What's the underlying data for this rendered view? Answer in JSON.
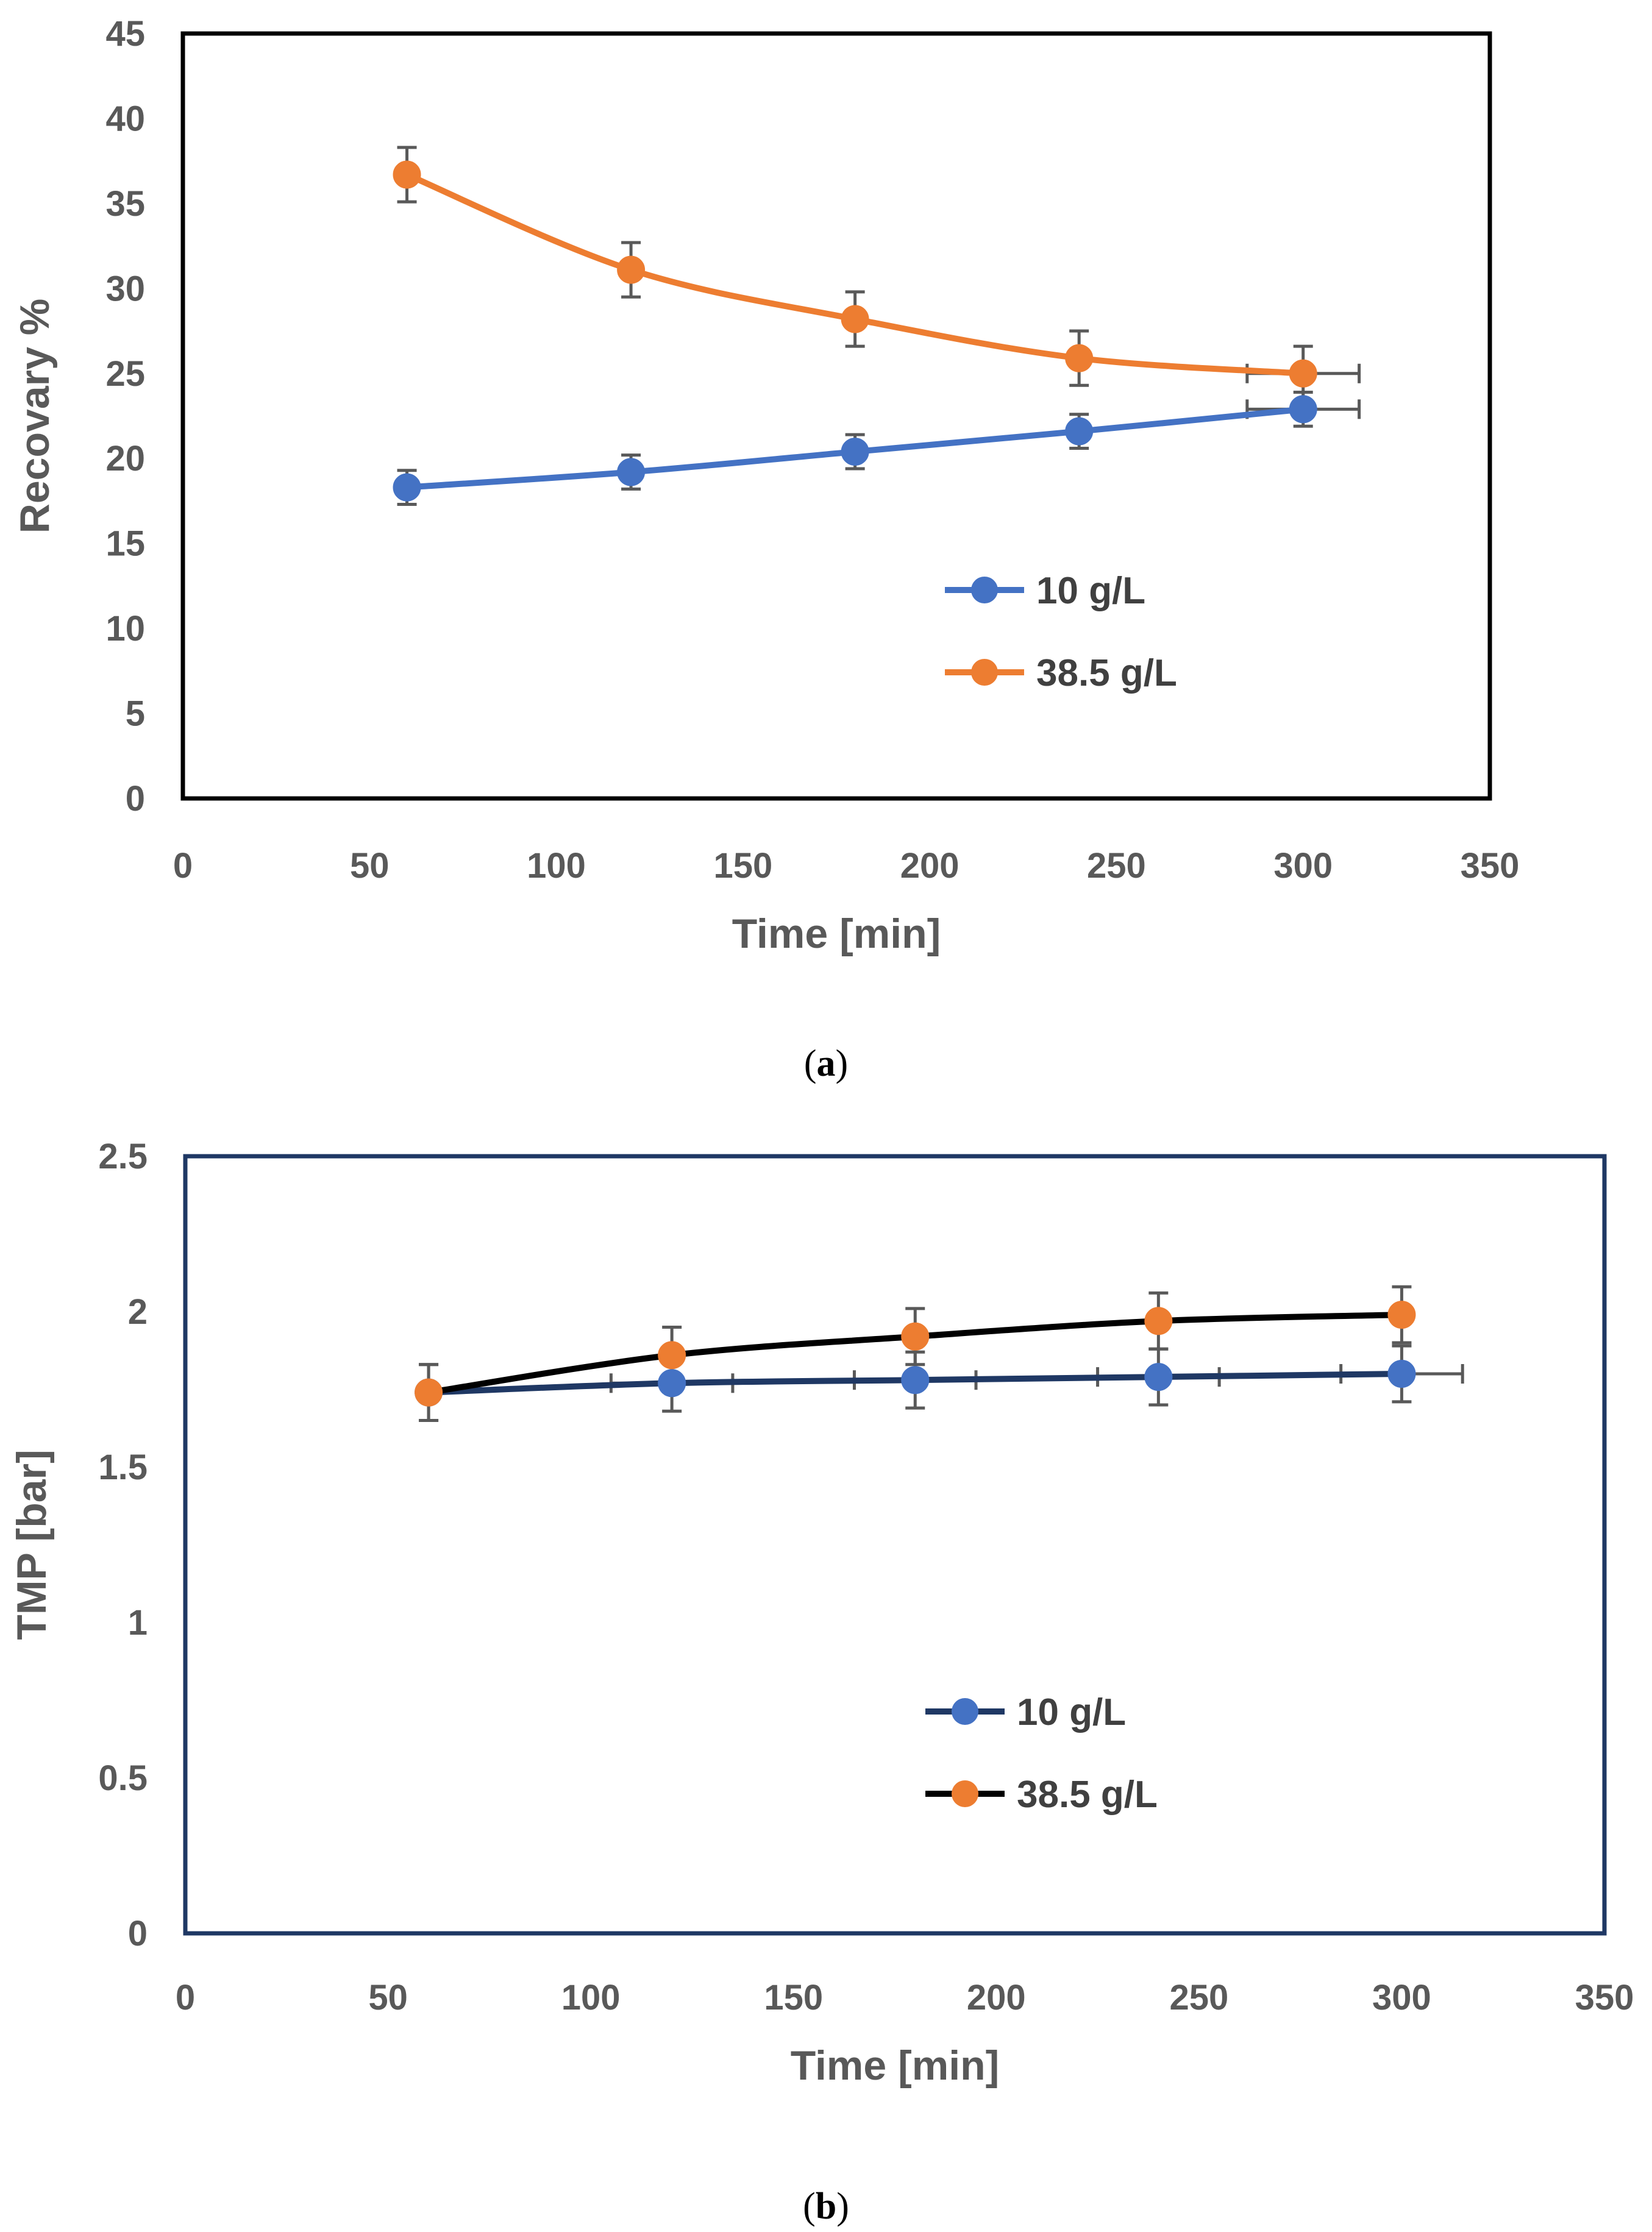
{
  "figure": {
    "caption_a": {
      "open": "(",
      "letter": "a",
      "close": ")"
    },
    "caption_b": {
      "open": "(",
      "letter": "b",
      "close": ")"
    }
  },
  "chart_data": [
    {
      "type": "line",
      "panel": "a",
      "xlabel": "Time [min]",
      "ylabel": "Recovary %",
      "xlim": [
        0,
        350
      ],
      "ylim": [
        0,
        45
      ],
      "xticks": [
        0,
        50,
        100,
        150,
        200,
        250,
        300,
        350
      ],
      "yticks": [
        0,
        5,
        10,
        15,
        20,
        25,
        30,
        35,
        40,
        45
      ],
      "grid": false,
      "legend_position": "center-right",
      "x": [
        60,
        120,
        180,
        240,
        300
      ],
      "series": [
        {
          "name": "10 g/L",
          "values": [
            18.3,
            19.2,
            20.4,
            21.6,
            22.9
          ],
          "y_error": 1.0,
          "x_error": [
            0,
            0,
            0,
            0,
            15
          ],
          "marker_color": "#4472C4",
          "line_color": "#4472C4"
        },
        {
          "name": "38.5 g/L",
          "values": [
            36.7,
            31.1,
            28.2,
            25.9,
            25.0
          ],
          "y_error": 1.6,
          "x_error": [
            0,
            0,
            0,
            0,
            15
          ],
          "marker_color": "#ED7D31",
          "line_color": "#ED7D31"
        }
      ]
    },
    {
      "type": "line",
      "panel": "b",
      "xlabel": "Time [min]",
      "ylabel": "TMP [bar]",
      "xlim": [
        0,
        350
      ],
      "ylim": [
        0,
        2.5
      ],
      "xticks": [
        0,
        50,
        100,
        150,
        200,
        250,
        300,
        350
      ],
      "yticks": [
        "0",
        "0.5",
        "1",
        "1.5",
        "2",
        "2.5"
      ],
      "grid": false,
      "legend_position": "center-right",
      "x": [
        60,
        120,
        180,
        240,
        300
      ],
      "series": [
        {
          "name": "10 g/L",
          "values": [
            1.74,
            1.77,
            1.78,
            1.79,
            1.8
          ],
          "y_error": 0.09,
          "x_error": [
            0,
            15,
            15,
            15,
            15
          ],
          "marker_color": "#4472C4",
          "line_color": "#1F3864"
        },
        {
          "name": "38.5 g/L",
          "values": [
            1.74,
            1.86,
            1.92,
            1.97,
            1.99
          ],
          "y_error": 0.09,
          "x_error": [
            0,
            0,
            0,
            0,
            0
          ],
          "marker_color": "#ED7D31",
          "line_color": "#000000"
        }
      ]
    }
  ]
}
